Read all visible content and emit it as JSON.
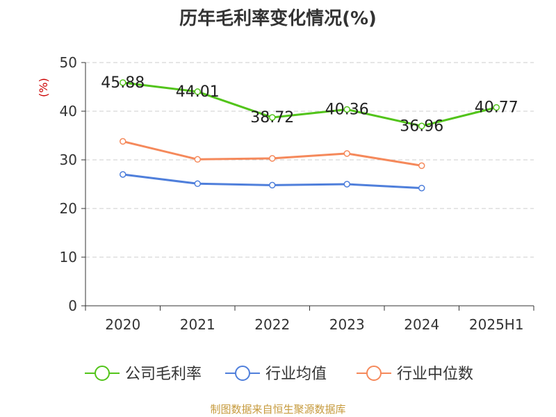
{
  "title": "历年毛利率变化情况(%)",
  "source": "制图数据来自恒生聚源数据库",
  "chart_data": {
    "type": "line",
    "title": "历年毛利率变化情况(%)",
    "ylabel": "(%)",
    "xlabel": "",
    "categories": [
      "2020",
      "2021",
      "2022",
      "2023",
      "2024",
      "2025H1"
    ],
    "ylim": [
      0,
      50
    ],
    "yticks": [
      0,
      10,
      20,
      30,
      40,
      50
    ],
    "grid": true,
    "legend_position": "bottom",
    "series": [
      {
        "name": "公司毛利率",
        "color": "#52c41a",
        "values": [
          45.88,
          44.01,
          38.72,
          40.36,
          36.96,
          40.77
        ],
        "labels": [
          "45.88",
          "44.01",
          "38.72",
          "40.36",
          "36.96",
          "40.77"
        ]
      },
      {
        "name": "行业均值",
        "color": "#4f7fdb",
        "values": [
          27.0,
          25.1,
          24.8,
          25.0,
          24.2,
          null
        ]
      },
      {
        "name": "行业中位数",
        "color": "#f5895b",
        "values": [
          33.8,
          30.1,
          30.3,
          31.3,
          28.8,
          null
        ]
      }
    ]
  }
}
